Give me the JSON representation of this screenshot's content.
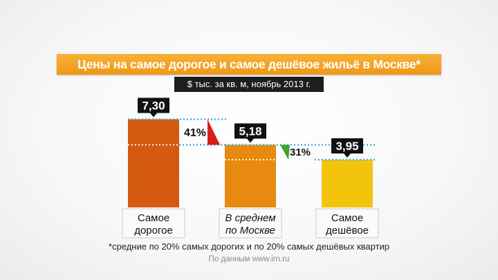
{
  "chart_data": {
    "type": "bar",
    "title": "Цены на самое дорогое и самое дешёвое жильё в Москве*",
    "subtitle": "$ тыс. за кв. м, ноябрь 2013 г.",
    "categories": [
      [
        "Самое",
        "дорогое"
      ],
      [
        "В среднем",
        "по Москве"
      ],
      [
        "Самое",
        "дешёвое"
      ]
    ],
    "values": [
      7.3,
      5.18,
      3.95
    ],
    "value_labels": [
      "7,30",
      "5,18",
      "3,95"
    ],
    "bar_colors": [
      "#d35a0e",
      "#e88a10",
      "#f2c50c"
    ],
    "differences": [
      {
        "label": "41%",
        "direction": "down",
        "color": "#d91c1c"
      },
      {
        "label": "31%",
        "direction": "down",
        "color": "#3aa52e"
      }
    ],
    "footnote": "*средние по 20% самых дорогих и по 20% самых дешёвых квартир",
    "source": "По данным www.irn.ru"
  }
}
